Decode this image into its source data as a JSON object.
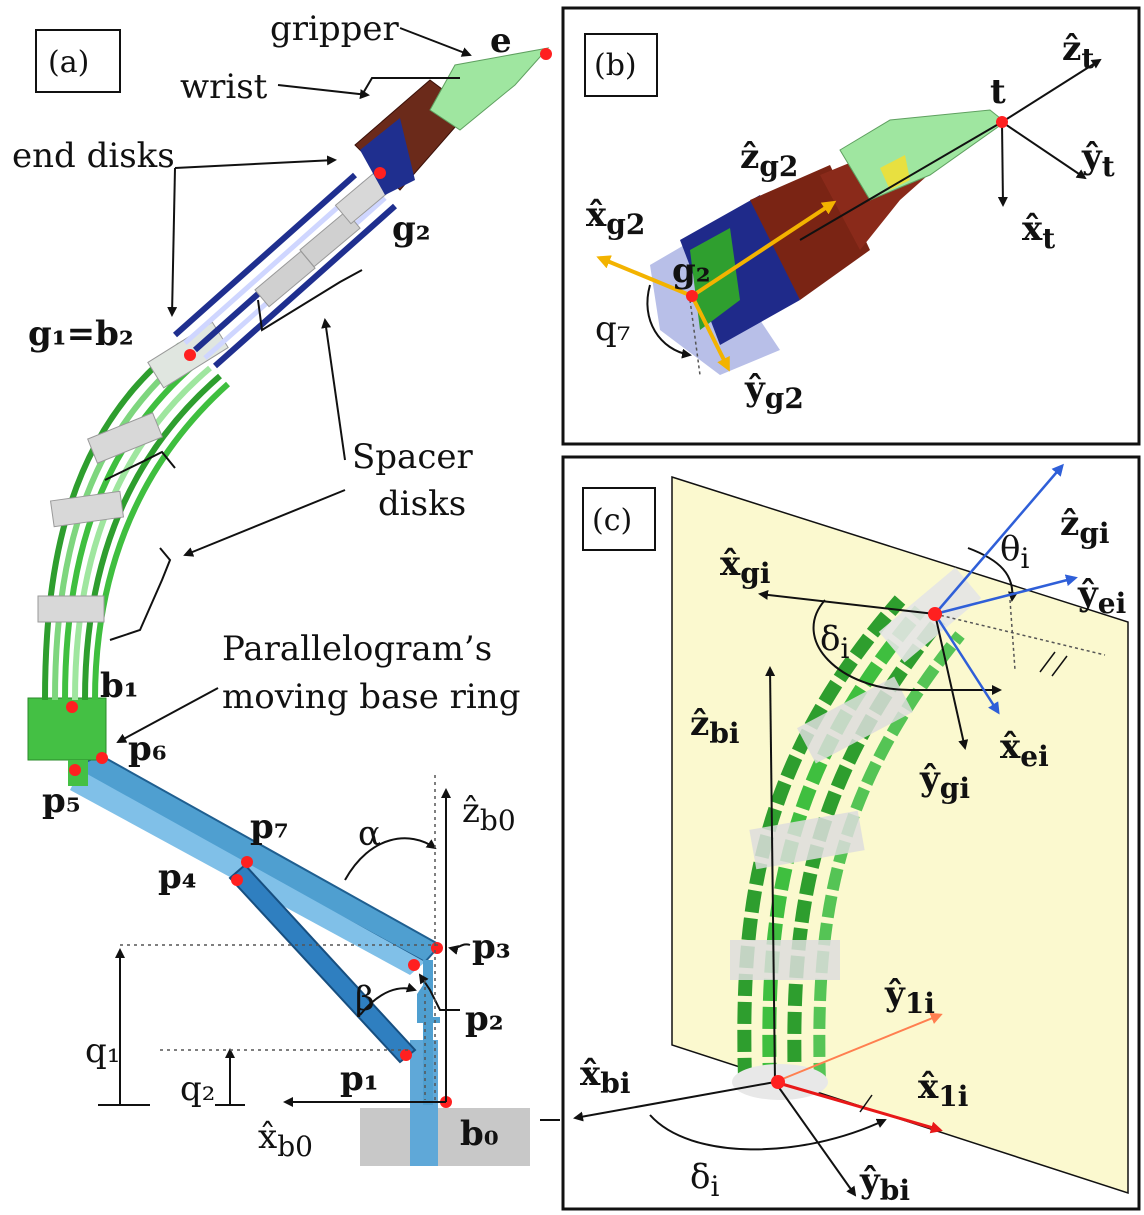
{
  "panel_a": {
    "tag": "(a)",
    "labels": {
      "gripper": "gripper",
      "e": "e",
      "wrist": "wrist",
      "end_disks": "end disks",
      "g2": "g₂",
      "g1b2": "g₁=b₂",
      "spacer1": "Spacer",
      "spacer2": "disks",
      "parallel1": "Parallelogram’s",
      "parallel2": "moving base ring",
      "b1": "b₁",
      "p6": "p₆",
      "p5": "p₅",
      "p7": "p₇",
      "p4": "p₄",
      "p3": "p₃",
      "p2": "p₂",
      "p1": "p₁",
      "b0": "b₀",
      "alpha": "α",
      "beta": "β",
      "q1": "q₁",
      "q2": "q₂",
      "zb0": "ẑ",
      "zb0_sub": "b0",
      "xb0": "x̂",
      "xb0_sub": "b0"
    }
  },
  "panel_b": {
    "tag": "(b)",
    "labels": {
      "t": "t",
      "zt": "ẑ",
      "zt_sub": "t",
      "yt": "ŷ",
      "yt_sub": "t",
      "xt": "x̂",
      "xt_sub": "t",
      "zg2": "ẑ",
      "zg2_sub": "g2",
      "xg2": "x̂",
      "xg2_sub": "g2",
      "g2": "g₂",
      "q7": "q₇",
      "yg2": "ŷ",
      "yg2_sub": "g2"
    }
  },
  "panel_c": {
    "tag": "(c)",
    "labels": {
      "xgi": "x̂",
      "xgi_sub": "gi",
      "zgi": "ẑ",
      "zgi_sub": "gi",
      "theta": "θ",
      "theta_sub": "i",
      "yei": "ŷ",
      "yei_sub": "ei",
      "delta": "δ",
      "delta_sub": "i",
      "zbi": "ẑ",
      "zbi_sub": "bi",
      "xei": "x̂",
      "xei_sub": "ei",
      "ygi": "ŷ",
      "ygi_sub": "gi",
      "y1i": "ŷ",
      "y1i_sub": "1i",
      "xbi": "x̂",
      "xbi_sub": "bi",
      "x1i": "x̂",
      "x1i_sub": "1i",
      "delta2": "δ",
      "delta2_sub": "i",
      "ybi": "ŷ",
      "ybi_sub": "bi"
    }
  },
  "colors": {
    "green": "#3fbf3f",
    "light_green": "#9fe69f",
    "steel_blue": "#4f9fd0",
    "red_point": "#ff2020",
    "plane": "#fbf9cf",
    "blue_axis": "#2f5fd8"
  }
}
